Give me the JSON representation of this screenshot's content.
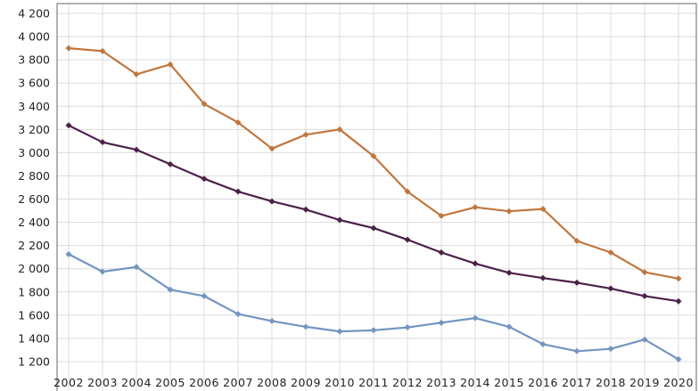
{
  "chart_data": {
    "type": "line",
    "title": "",
    "xlabel": "",
    "ylabel": "",
    "grid": true,
    "legend": "none",
    "ylim": [
      1100,
      4250
    ],
    "x": [
      "2002",
      "2003",
      "2004",
      "2005",
      "2006",
      "2007",
      "2008",
      "2009",
      "2010",
      "2011",
      "2012",
      "2013",
      "2014",
      "2015",
      "2016",
      "2017",
      "2018",
      "2019",
      "2020"
    ],
    "yticks": [
      1200,
      1400,
      1600,
      1800,
      2000,
      2200,
      2400,
      2600,
      2800,
      3000,
      3200,
      3400,
      3600,
      3800,
      4000,
      4200
    ],
    "ytick_labels": [
      "1 200",
      "1 400",
      "1 600",
      "1 800",
      "2 000",
      "2 200",
      "2 400",
      "2 600",
      "2 800",
      "3 000",
      "3 200",
      "3 400",
      "3 600",
      "3 800",
      "4 000",
      "4 200"
    ],
    "series": [
      {
        "color": "#c0773f",
        "values": [
          3900,
          3875,
          3675,
          3760,
          3420,
          3260,
          3035,
          3155,
          3200,
          2970,
          2665,
          2455,
          2530,
          2495,
          2515,
          2240,
          2140,
          1970,
          1915
        ]
      },
      {
        "color": "#4b2148",
        "values": [
          3235,
          3090,
          3025,
          2900,
          2775,
          2665,
          2580,
          2510,
          2420,
          2350,
          2250,
          2140,
          2045,
          1965,
          1920,
          1880,
          1830,
          1765,
          1720
        ]
      },
      {
        "color": "#7395c1",
        "values": [
          2125,
          1975,
          2015,
          1820,
          1765,
          1610,
          1550,
          1500,
          1460,
          1470,
          1495,
          1535,
          1575,
          1500,
          1350,
          1290,
          1310,
          1390,
          1220
        ]
      }
    ]
  }
}
